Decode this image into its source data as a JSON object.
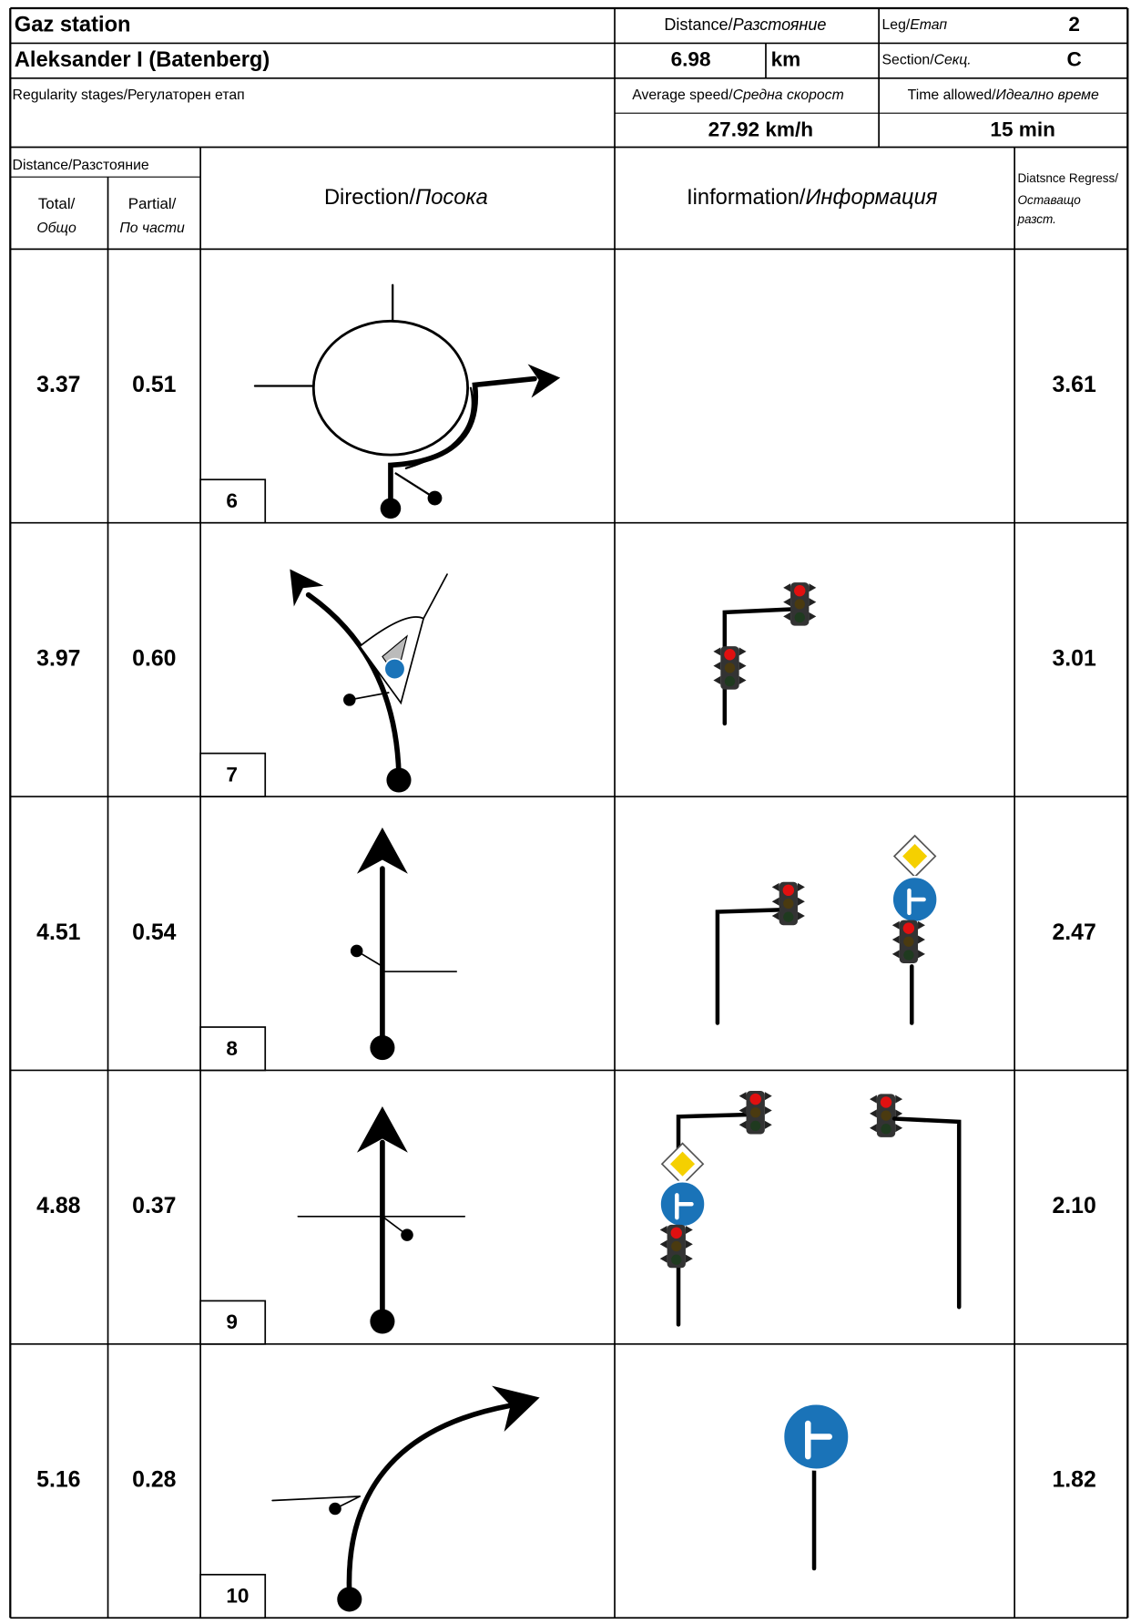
{
  "header": {
    "title": "Gaz station",
    "subtitle": "Aleksander I (Batenberg)",
    "stage": "Regularity stages/Регулаторен етап",
    "distance_label": {
      "text": "Distance/",
      "italic": "Разстояние"
    },
    "distance_value": "6.98",
    "distance_unit": "km",
    "leg_label": {
      "text": "Leg/",
      "italic": "Етап"
    },
    "leg": "2",
    "section_label": {
      "text": "Section/",
      "italic": "Секц."
    },
    "section": "C",
    "speed_label": {
      "text": "Average speed/",
      "italic": "Средна скорост"
    },
    "speed": "27.92 km/h",
    "time_label": {
      "text": "Time allowed/",
      "italic": "Идеално време"
    },
    "time": "15 min"
  },
  "columns": {
    "distance": "Distance/Разстояние",
    "total": {
      "text": "Total/",
      "italic": "Общо"
    },
    "partial": {
      "text": "Partial/",
      "italic": "По части"
    },
    "direction": {
      "text": "Direction/",
      "italic": "Посока"
    },
    "information": {
      "text": "Iinformation/",
      "italic": "Информация"
    },
    "regress": {
      "line1": "Diatsnce Regress/",
      "line2": "Оставащо",
      "line3": "разст."
    }
  },
  "rows": [
    {
      "total": "3.37",
      "partial": "0.51",
      "number": "6",
      "regress": "3.61"
    },
    {
      "total": "3.97",
      "partial": "0.60",
      "number": "7",
      "regress": "3.01"
    },
    {
      "total": "4.51",
      "partial": "0.54",
      "number": "8",
      "regress": "2.47"
    },
    {
      "total": "4.88",
      "partial": "0.37",
      "number": "9",
      "regress": "2.10"
    },
    {
      "total": "5.16",
      "partial": "0.28",
      "number": "10",
      "regress": "1.82"
    }
  ]
}
